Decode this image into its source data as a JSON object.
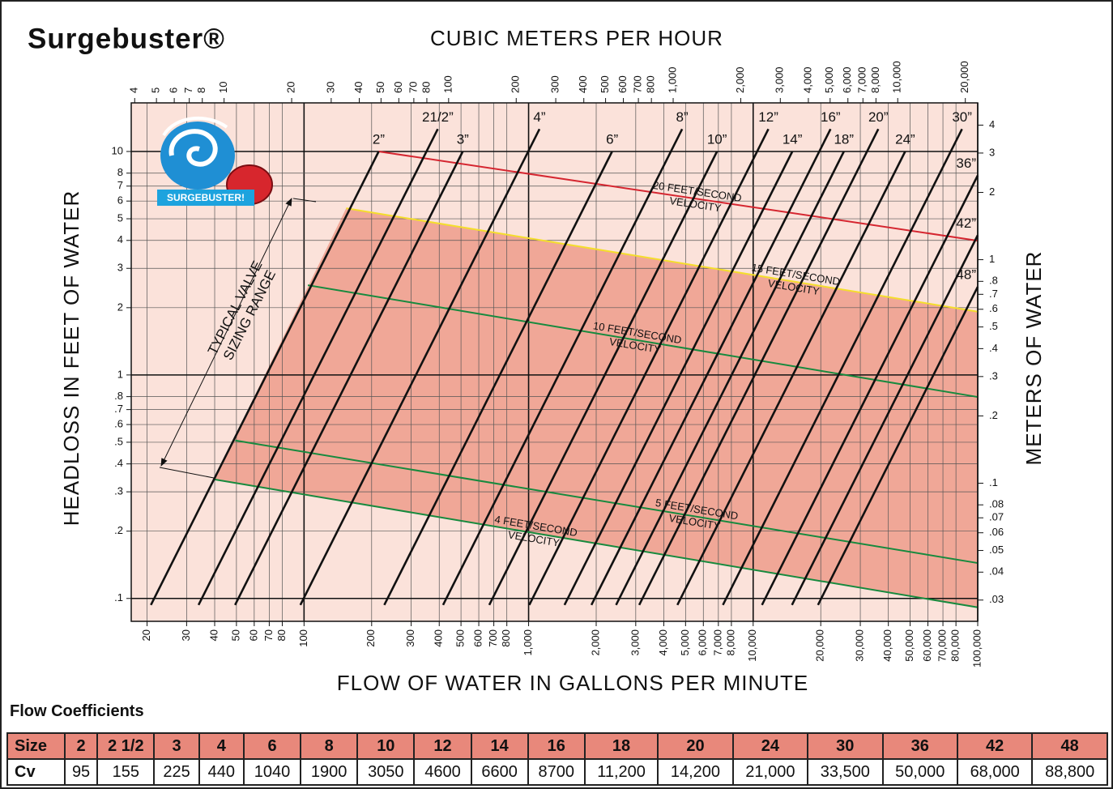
{
  "chart_data": {
    "type": "line",
    "title": "Surgebuster®",
    "x2_label": "CUBIC METERS PER HOUR",
    "x_label": "FLOW OF WATER IN GALLONS PER MINUTE",
    "y_label": "HEADLOSS IN FEET OF WATER",
    "y2_label": "METERS OF WATER",
    "xscale": "log",
    "yscale": "log",
    "grid": true,
    "plot_color": "#fbe2da",
    "range_color": "#f0a797",
    "xlim": [
      17,
      100000
    ],
    "xticks": [
      20,
      30,
      40,
      50,
      60,
      70,
      80,
      100,
      200,
      300,
      400,
      500,
      600,
      700,
      800,
      {
        "value": 1000,
        "label": "1,000"
      },
      {
        "value": 2000,
        "label": "2,000"
      },
      {
        "value": 3000,
        "label": "3,000"
      },
      {
        "value": 4000,
        "label": "4,000"
      },
      {
        "value": 5000,
        "label": "5,000"
      },
      {
        "value": 6000,
        "label": "6,000"
      },
      {
        "value": 7000,
        "label": "7,000"
      },
      {
        "value": 8000,
        "label": "8,000"
      },
      {
        "value": 10000,
        "label": "10,000"
      },
      {
        "value": 20000,
        "label": "20,000"
      },
      {
        "value": 30000,
        "label": "30,000"
      },
      {
        "value": 40000,
        "label": "40,000"
      },
      {
        "value": 50000,
        "label": "50,000"
      },
      {
        "value": 60000,
        "label": "60,000"
      },
      {
        "value": 70000,
        "label": "70,000"
      },
      {
        "value": 80000,
        "label": "80,000"
      },
      {
        "value": 100000,
        "label": "100,000"
      }
    ],
    "x2lim": [
      3.86,
      22712
    ],
    "x2ticks": [
      4,
      5,
      6,
      7,
      8,
      10,
      20,
      30,
      40,
      50,
      60,
      70,
      80,
      100,
      200,
      300,
      400,
      500,
      600,
      700,
      800,
      {
        "value": 1000,
        "label": "1,000"
      },
      {
        "value": 2000,
        "label": "2,000"
      },
      {
        "value": 3000,
        "label": "3,000"
      },
      {
        "value": 4000,
        "label": "4,000"
      },
      {
        "value": 5000,
        "label": "5,000"
      },
      {
        "value": 6000,
        "label": "6,000"
      },
      {
        "value": 7000,
        "label": "7,000"
      },
      {
        "value": 8000,
        "label": "8,000"
      },
      {
        "value": 10000,
        "label": "10,000"
      },
      {
        "value": 20000,
        "label": "20,000"
      }
    ],
    "ylim": [
      0.079,
      16.5
    ],
    "yticks": [
      10,
      8,
      7,
      6,
      5,
      4,
      3,
      2,
      1,
      {
        "value": 0.8,
        "label": ".8"
      },
      {
        "value": 0.7,
        "label": ".7"
      },
      {
        "value": 0.6,
        "label": ".6"
      },
      {
        "value": 0.5,
        "label": ".5"
      },
      {
        "value": 0.4,
        "label": ".4"
      },
      {
        "value": 0.3,
        "label": ".3"
      },
      {
        "value": 0.2,
        "label": ".2"
      },
      {
        "value": 0.1,
        "label": ".1"
      }
    ],
    "y2lim": [
      0.0241,
      5.03
    ],
    "y2ticks": [
      4,
      3,
      2,
      1,
      {
        "value": 0.8,
        "label": ".8"
      },
      {
        "value": 0.7,
        "label": ".7"
      },
      {
        "value": 0.6,
        "label": ".6"
      },
      {
        "value": 0.5,
        "label": ".5"
      },
      {
        "value": 0.4,
        "label": ".4"
      },
      {
        "value": 0.3,
        "label": ".3"
      },
      {
        "value": 0.2,
        "label": ".2"
      },
      {
        "value": 0.1,
        "label": ".1"
      },
      {
        "value": 0.08,
        "label": ".08"
      },
      {
        "value": 0.07,
        "label": ".07"
      },
      {
        "value": 0.06,
        "label": ".06"
      },
      {
        "value": 0.05,
        "label": ".05"
      },
      {
        "value": 0.04,
        "label": ".04"
      },
      {
        "value": 0.03,
        "label": ".03"
      }
    ],
    "series": [
      {
        "name": "2”",
        "color": "#111111",
        "x": [
          20.8,
          215
        ],
        "values": [
          0.0935,
          10
        ]
      },
      {
        "name": "21/2”",
        "color": "#111111",
        "x": [
          33.9,
          394
        ],
        "values": [
          0.0935,
          12.6
        ]
      },
      {
        "name": "3”",
        "color": "#111111",
        "x": [
          49.3,
          509
        ],
        "values": [
          0.0935,
          10
        ]
      },
      {
        "name": "4”",
        "color": "#111111",
        "x": [
          96.3,
          1118
        ],
        "values": [
          0.0935,
          12.6
        ]
      },
      {
        "name": "6”",
        "color": "#111111",
        "x": [
          227.7,
          2354
        ],
        "values": [
          0.0935,
          10
        ]
      },
      {
        "name": "8”",
        "color": "#111111",
        "x": [
          416,
          4828
        ],
        "values": [
          0.0935,
          12.6
        ]
      },
      {
        "name": "10”",
        "color": "#111111",
        "x": [
          668,
          6902
        ],
        "values": [
          0.0935,
          10
        ]
      },
      {
        "name": "12”",
        "color": "#111111",
        "x": [
          1007,
          11690
        ],
        "values": [
          0.0935,
          12.6
        ]
      },
      {
        "name": "14”",
        "color": "#111111",
        "x": [
          1445,
          14940
        ],
        "values": [
          0.0935,
          10
        ]
      },
      {
        "name": "16”",
        "color": "#111111",
        "x": [
          1904,
          22110
        ],
        "values": [
          0.0935,
          12.6
        ]
      },
      {
        "name": "18”",
        "color": "#111111",
        "x": [
          2452,
          25350
        ],
        "values": [
          0.0935,
          10
        ]
      },
      {
        "name": "20”",
        "color": "#111111",
        "x": [
          3108,
          36080
        ],
        "values": [
          0.0935,
          12.6
        ]
      },
      {
        "name": "24”",
        "color": "#111111",
        "x": [
          4597,
          47520
        ],
        "values": [
          0.0935,
          10
        ]
      },
      {
        "name": "30”",
        "color": "#111111",
        "x": [
          7333,
          85120
        ],
        "values": [
          0.0935,
          12.6
        ]
      },
      {
        "name": "36”",
        "color": "#111111",
        "x": [
          10945,
          100000
        ],
        "values": [
          0.0935,
          7.81
        ]
      },
      {
        "name": "42”",
        "color": "#111111",
        "x": [
          14885,
          100000
        ],
        "values": [
          0.0935,
          4.22
        ]
      },
      {
        "name": "48”",
        "color": "#111111",
        "x": [
          19439,
          100000
        ],
        "values": [
          0.0935,
          2.48
        ]
      }
    ],
    "velocity_lines": [
      {
        "label": [
          "20 FEET/SECOND",
          "VELOCITY"
        ],
        "color": "#d52630",
        "x": [
          215,
          100000
        ],
        "values": [
          10,
          3.99
        ]
      },
      {
        "label": [
          "15 FEET/SECOND",
          "VELOCITY"
        ],
        "color": "#f4de2c",
        "x": [
          154,
          100000
        ],
        "values": [
          5.57,
          1.92
        ]
      },
      {
        "label": [
          "10 FEET/SECOND",
          "VELOCITY"
        ],
        "color": "#178a3e",
        "x": [
          104,
          100000
        ],
        "values": [
          2.52,
          0.797
        ]
      },
      {
        "label": [
          "5 FEET/SECOND",
          "VELOCITY"
        ],
        "color": "#178a3e",
        "x": [
          49.4,
          100000
        ],
        "values": [
          0.509,
          0.144
        ]
      },
      {
        "label": [
          "4 FEET/SECOND",
          "VELOCITY"
        ],
        "color": "#178a3e",
        "x": [
          39.7,
          100000
        ],
        "values": [
          0.341,
          0.0912
        ]
      }
    ],
    "annotation": [
      "TYPICAL VALVE",
      "SIZING RANGE"
    ],
    "logo_text": "SURGEBUSTER!"
  },
  "table": {
    "title": "Flow Coefficients",
    "rows": [
      [
        "Size",
        "2",
        "2 1/2",
        "3",
        "4",
        "6",
        "8",
        "10",
        "12",
        "14",
        "16",
        "18",
        "20",
        "24",
        "30",
        "36",
        "42",
        "48"
      ],
      [
        "Cv",
        "95",
        "155",
        "225",
        "440",
        "1040",
        "1900",
        "3050",
        "4600",
        "6600",
        "8700",
        "11,200",
        "14,200",
        "21,000",
        "33,500",
        "50,000",
        "68,000",
        "88,800"
      ]
    ]
  }
}
